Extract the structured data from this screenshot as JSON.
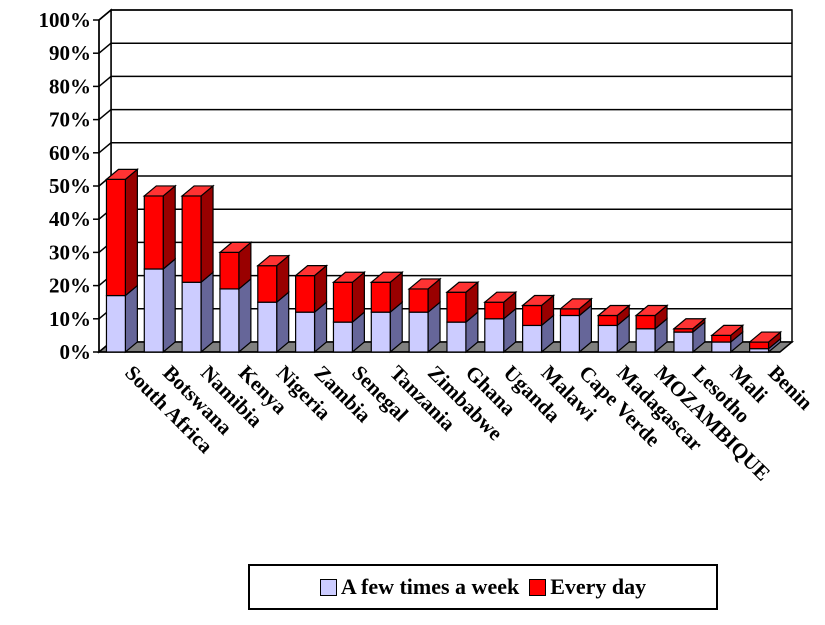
{
  "chart_data": {
    "type": "bar",
    "stacked": true,
    "three_d": true,
    "categories": [
      "South Africa",
      "Botswana",
      "Namibia",
      "Kenya",
      "Nigeria",
      "Zambia",
      "Senegal",
      "Tanzania",
      "Zimbabwe",
      "Ghana",
      "Uganda",
      "Malawi",
      "Cape Verde",
      "Madagascar",
      "MOZAMBIQUE",
      "Lesotho",
      "Mali",
      "Benin"
    ],
    "series": [
      {
        "name": "A few times a week",
        "color": "#ccccff",
        "values": [
          17,
          25,
          21,
          19,
          15,
          12,
          9,
          12,
          12,
          9,
          10,
          8,
          11,
          8,
          7,
          6,
          3,
          1
        ]
      },
      {
        "name": "Every day",
        "color": "#ff0000",
        "values": [
          35,
          22,
          26,
          11,
          11,
          11,
          12,
          9,
          7,
          9,
          5,
          6,
          2,
          3,
          4,
          1,
          2,
          2
        ]
      }
    ],
    "y_ticks": [
      "0%",
      "10%",
      "20%",
      "30%",
      "40%",
      "50%",
      "60%",
      "70%",
      "80%",
      "90%",
      "100%"
    ],
    "ylim": [
      0,
      100
    ],
    "grid": true,
    "legend_position": "bottom"
  },
  "legend": {
    "items": [
      {
        "label": "A few times a week",
        "color": "#ccccff"
      },
      {
        "label": "Every day",
        "color": "#ff0000"
      }
    ]
  }
}
